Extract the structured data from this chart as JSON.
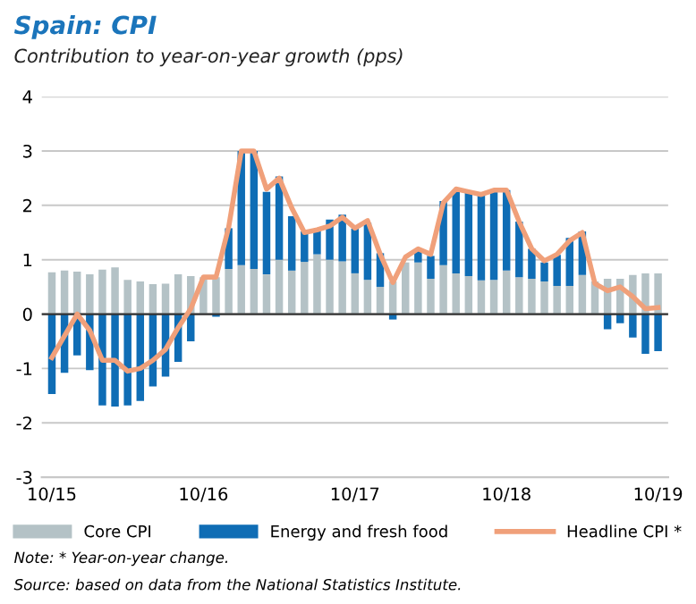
{
  "chart_data": {
    "type": "bar",
    "stacked": true,
    "title": "Spain: CPI",
    "subtitle": "Contribution to year-on-year growth (pps)",
    "categories": [
      "10/15",
      null,
      null,
      null,
      null,
      null,
      null,
      null,
      null,
      null,
      null,
      null,
      "10/16",
      null,
      null,
      null,
      null,
      null,
      null,
      null,
      null,
      null,
      null,
      null,
      "10/17",
      null,
      null,
      null,
      null,
      null,
      null,
      null,
      null,
      null,
      null,
      null,
      "10/18",
      null,
      null,
      null,
      null,
      null,
      null,
      null,
      null,
      null,
      null,
      null,
      "10/19"
    ],
    "series": [
      {
        "name": "Core CPI",
        "color": "#b4c2c6",
        "values": [
          0.77,
          0.8,
          0.78,
          0.73,
          0.82,
          0.86,
          0.63,
          0.6,
          0.55,
          0.56,
          0.73,
          0.7,
          0.68,
          0.68,
          0.83,
          0.9,
          0.83,
          0.73,
          1.0,
          0.8,
          0.96,
          1.1,
          1.0,
          0.97,
          0.75,
          0.63,
          0.5,
          0.6,
          0.95,
          0.95,
          0.65,
          0.9,
          0.75,
          0.7,
          0.62,
          0.63,
          0.8,
          0.68,
          0.65,
          0.6,
          0.52,
          0.52,
          0.72,
          0.6,
          0.65,
          0.65,
          0.72,
          0.75,
          0.75
        ]
      },
      {
        "name": "Energy and fresh food",
        "color": "#0f6db5",
        "values": [
          -1.47,
          -1.08,
          -0.76,
          -1.03,
          -1.68,
          -1.7,
          -1.68,
          -1.6,
          -1.33,
          -1.15,
          -0.88,
          -0.5,
          0.0,
          -0.05,
          0.75,
          2.1,
          2.17,
          1.52,
          1.53,
          1.0,
          0.56,
          0.47,
          0.74,
          0.86,
          0.82,
          1.05,
          0.62,
          -0.1,
          null,
          0.23,
          0.42,
          1.18,
          1.53,
          1.55,
          1.58,
          1.65,
          1.48,
          1.02,
          0.55,
          0.35,
          0.57,
          0.88,
          0.8,
          null,
          -0.28,
          -0.17,
          -0.43,
          -0.73,
          -0.68
        ]
      },
      {
        "name": "Headline CPI *",
        "type": "line",
        "color": "#f0a07a",
        "values": [
          -0.8,
          -0.4,
          0.0,
          -0.3,
          -0.85,
          -0.85,
          -1.05,
          -1.0,
          -0.85,
          -0.65,
          -0.25,
          0.1,
          0.68,
          0.68,
          1.6,
          3.0,
          3.0,
          2.3,
          2.5,
          1.95,
          1.5,
          1.55,
          1.62,
          1.78,
          1.58,
          1.72,
          1.1,
          0.58,
          1.05,
          1.2,
          1.1,
          2.05,
          2.3,
          2.25,
          2.2,
          2.28,
          2.28,
          1.7,
          1.2,
          0.98,
          1.1,
          1.35,
          1.5,
          0.56,
          0.43,
          0.5,
          0.32,
          0.1,
          0.12
        ]
      }
    ],
    "ylim": [
      -3,
      4
    ],
    "yticks": [
      -3,
      -2,
      -1,
      0,
      1,
      2,
      3,
      4
    ],
    "grid": "y",
    "legend": "bottom",
    "annotations": [
      "Note: * Year-on-year change.",
      "Source: based on data from the National Statistics Institute."
    ]
  }
}
